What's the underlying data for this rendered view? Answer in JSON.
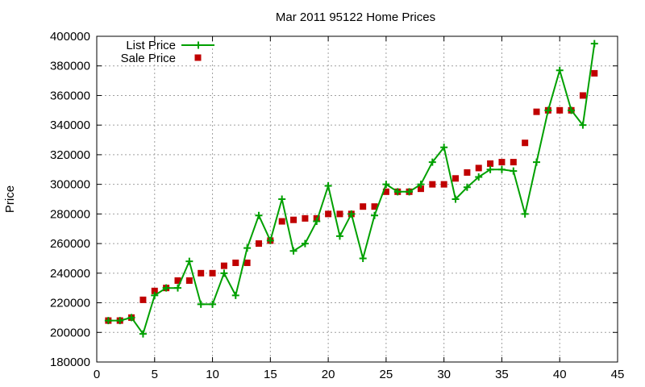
{
  "chart_data": {
    "type": "line",
    "title": "Mar 2011 95122 Home Prices",
    "xlabel": "",
    "ylabel": "Price",
    "xlim": [
      0,
      45
    ],
    "ylim": [
      180000,
      400000
    ],
    "x_ticks": [
      0,
      5,
      10,
      15,
      20,
      25,
      30,
      35,
      40,
      45
    ],
    "y_ticks": [
      180000,
      200000,
      220000,
      240000,
      260000,
      280000,
      300000,
      320000,
      340000,
      360000,
      380000,
      400000
    ],
    "grid": true,
    "legend_position": "top-left",
    "series": [
      {
        "name": "List Price",
        "style": "line-with-plus-markers",
        "color": "#00a000",
        "x": [
          1,
          2,
          3,
          4,
          5,
          6,
          7,
          8,
          9,
          10,
          11,
          12,
          13,
          14,
          15,
          16,
          17,
          18,
          19,
          20,
          21,
          22,
          23,
          24,
          25,
          26,
          27,
          28,
          29,
          30,
          31,
          32,
          33,
          34,
          35,
          36,
          37,
          38,
          39,
          40,
          41,
          42,
          43
        ],
        "values": [
          208000,
          208000,
          210000,
          199000,
          225000,
          230000,
          230000,
          248000,
          219000,
          219000,
          240000,
          225000,
          257000,
          279000,
          262000,
          290000,
          255000,
          260000,
          275000,
          299000,
          265000,
          280000,
          250000,
          279000,
          300000,
          295000,
          295000,
          300000,
          315000,
          325000,
          290000,
          298000,
          305000,
          310000,
          310000,
          309000,
          280000,
          315000,
          350000,
          377000,
          350000,
          340000,
          395000
        ]
      },
      {
        "name": "Sale Price",
        "style": "square-markers",
        "color": "#c00000",
        "x": [
          1,
          2,
          3,
          4,
          5,
          6,
          7,
          8,
          9,
          10,
          11,
          12,
          13,
          14,
          15,
          16,
          17,
          18,
          19,
          20,
          21,
          22,
          23,
          24,
          25,
          26,
          27,
          28,
          29,
          30,
          31,
          32,
          33,
          34,
          35,
          36,
          37,
          38,
          39,
          40,
          41,
          42,
          43
        ],
        "values": [
          208000,
          208000,
          210000,
          222000,
          228000,
          230000,
          235000,
          235000,
          240000,
          240000,
          245000,
          247000,
          247000,
          260000,
          262000,
          275000,
          276000,
          277000,
          277000,
          280000,
          280000,
          280000,
          285000,
          285000,
          295000,
          295000,
          295000,
          297000,
          300000,
          300000,
          304000,
          308000,
          311000,
          314000,
          315000,
          315000,
          328000,
          349000,
          350000,
          350000,
          350000,
          360000,
          375000
        ]
      }
    ]
  }
}
